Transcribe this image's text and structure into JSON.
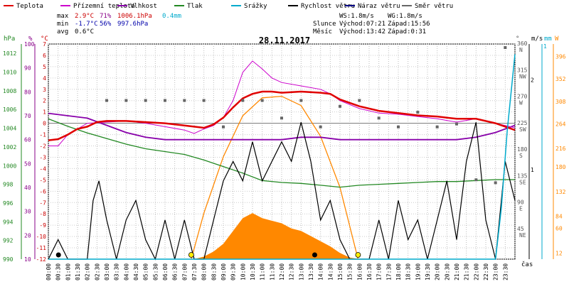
{
  "chart_data": {
    "type": "line",
    "title": "28.11.2017",
    "legend": [
      {
        "label": "Teplota",
        "color": "#e00000"
      },
      {
        "label": "Přízemní teplota",
        "color": "#cc00cc"
      },
      {
        "label": "Vlhkost",
        "color": "#8800aa"
      },
      {
        "label": "Tlak",
        "color": "#228822"
      },
      {
        "label": "Srážky",
        "color": "#00aacc"
      },
      {
        "label": "Rychlost větru",
        "color": "#000000"
      },
      {
        "label": "Náraz větru",
        "color": "#000088"
      },
      {
        "label": "Směr větru",
        "color": "#666666"
      }
    ],
    "stats": {
      "max": {
        "label": "max",
        "temp": "2.9°C",
        "hum": "71%",
        "press": "1006.1hPa",
        "rain": "0.4mm"
      },
      "min": {
        "label": "min",
        "temp": "-1.7°C",
        "hum": "56%",
        "press": "997.6hPa"
      },
      "avg": {
        "label": "avg",
        "temp": "0.6°C"
      }
    },
    "info": {
      "ws": "WS:1.8m/s",
      "wg": "WG:1.8m/s",
      "sun_label": "Slunce",
      "sun_rise": "Východ:07:21",
      "sun_set": "Západ:15:56",
      "moon_label": "Měsíc",
      "moon_rise": "Východ:13:42",
      "moon_set": "Západ:0:31"
    },
    "axes": {
      "hpa_label": "hPa",
      "pct_label": "%",
      "c_label": "°C",
      "deg_label": "°",
      "ms_label": "m/s",
      "mm_label": "mm",
      "w_label": "W",
      "x_label": "čas",
      "hpa_ticks": [
        "990",
        "992",
        "994",
        "996",
        "998",
        "1000",
        "1002",
        "1004",
        "1006",
        "1008",
        "1010",
        "1012"
      ],
      "pct_ticks": [
        "10",
        "20",
        "30",
        "40",
        "50",
        "60",
        "70",
        "80",
        "90",
        "100"
      ],
      "c_range": [
        -12,
        7
      ],
      "ms_ticks": [
        "1",
        "2"
      ],
      "mm_ticks": [
        "1"
      ],
      "w_ticks": [
        "12",
        "60",
        "84",
        "132",
        "180",
        "216",
        "264",
        "308",
        "352",
        "396"
      ],
      "dir_ticks": [
        {
          "deg": "45",
          "dir": "NE"
        },
        {
          "deg": "90",
          "dir": "E"
        },
        {
          "deg": "135",
          "dir": "SE"
        },
        {
          "deg": "180",
          "dir": "S"
        },
        {
          "deg": "225",
          "dir": "SW"
        },
        {
          "deg": "270",
          "dir": "W"
        },
        {
          "deg": "315",
          "dir": "NW"
        },
        {
          "deg": "360",
          "dir": "N"
        }
      ],
      "x_ticks": [
        "00:00",
        "00:30",
        "01:00",
        "01:30",
        "02:00",
        "02:30",
        "03:00",
        "03:30",
        "04:00",
        "04:30",
        "05:00",
        "05:30",
        "06:00",
        "06:30",
        "07:00",
        "07:30",
        "08:00",
        "08:30",
        "09:00",
        "09:30",
        "10:00",
        "10:30",
        "11:00",
        "11:30",
        "12:00",
        "12:30",
        "13:00",
        "13:30",
        "14:00",
        "14:30",
        "15:00",
        "15:30",
        "16:00",
        "16:30",
        "17:00",
        "17:30",
        "18:00",
        "18:30",
        "19:00",
        "19:30",
        "20:00",
        "20:30",
        "21:00",
        "21:30",
        "22:00",
        "22:30",
        "23:00",
        "23:30"
      ]
    },
    "ylim_temp": [
      -12,
      7
    ],
    "ylim_hpa": [
      990,
      1013
    ],
    "ylim_pct": [
      10,
      100
    ],
    "ylim_wind": [
      0,
      11
    ],
    "ylim_w": [
      0,
      420
    ],
    "series": {
      "temperature": [
        [
          0,
          -1.5
        ],
        [
          0.5,
          -1.4
        ],
        [
          1,
          -1
        ],
        [
          1.5,
          -0.5
        ],
        [
          2,
          -0.3
        ],
        [
          2.5,
          0.1
        ],
        [
          3,
          0.2
        ],
        [
          4,
          0.2
        ],
        [
          5,
          0.1
        ],
        [
          6,
          0
        ],
        [
          7,
          -0.2
        ],
        [
          7.5,
          -0.3
        ],
        [
          8,
          -0.4
        ],
        [
          8.5,
          -0.1
        ],
        [
          9,
          0.5
        ],
        [
          9.5,
          1.4
        ],
        [
          10,
          2.2
        ],
        [
          10.5,
          2.6
        ],
        [
          11,
          2.8
        ],
        [
          11.5,
          2.8
        ],
        [
          12,
          2.7
        ],
        [
          13,
          2.8
        ],
        [
          14,
          2.7
        ],
        [
          14.5,
          2.6
        ],
        [
          15,
          2.1
        ],
        [
          16,
          1.5
        ],
        [
          17,
          1.1
        ],
        [
          18,
          0.9
        ],
        [
          19,
          0.7
        ],
        [
          20,
          0.6
        ],
        [
          21,
          0.4
        ],
        [
          22,
          0.4
        ],
        [
          23,
          0
        ],
        [
          24,
          -0.6
        ]
      ],
      "ground_temp": [
        [
          0,
          -2
        ],
        [
          0.5,
          -2
        ],
        [
          1,
          -1
        ],
        [
          1.5,
          -0.5
        ],
        [
          2,
          0
        ],
        [
          3,
          0.1
        ],
        [
          4,
          0.2
        ],
        [
          5,
          0
        ],
        [
          6,
          -0.3
        ],
        [
          7,
          -0.6
        ],
        [
          7.5,
          -0.9
        ],
        [
          8,
          -0.5
        ],
        [
          8.5,
          -0.2
        ],
        [
          9,
          0.5
        ],
        [
          9.5,
          2
        ],
        [
          10,
          4.5
        ],
        [
          10.5,
          5.5
        ],
        [
          11,
          4.8
        ],
        [
          11.5,
          4
        ],
        [
          12,
          3.6
        ],
        [
          13,
          3.3
        ],
        [
          14,
          3
        ],
        [
          14.5,
          2.6
        ],
        [
          15,
          2
        ],
        [
          16,
          1.3
        ],
        [
          17,
          0.9
        ],
        [
          18,
          0.8
        ],
        [
          19,
          0.6
        ],
        [
          20,
          0.4
        ],
        [
          21,
          0.1
        ],
        [
          22,
          0.4
        ],
        [
          23,
          0
        ],
        [
          24,
          -0.4
        ]
      ],
      "humidity": [
        [
          0,
          71
        ],
        [
          1,
          70
        ],
        [
          2,
          69
        ],
        [
          3,
          66
        ],
        [
          4,
          63
        ],
        [
          5,
          61
        ],
        [
          6,
          60
        ],
        [
          7,
          60
        ],
        [
          8,
          60
        ],
        [
          9,
          60
        ],
        [
          10,
          60
        ],
        [
          11,
          60
        ],
        [
          12,
          60
        ],
        [
          13,
          61
        ],
        [
          14,
          61
        ],
        [
          15,
          60
        ],
        [
          16,
          60
        ],
        [
          17,
          60
        ],
        [
          18,
          60
        ],
        [
          19,
          60
        ],
        [
          20,
          60
        ],
        [
          21,
          60
        ],
        [
          22,
          61
        ],
        [
          23,
          63
        ],
        [
          24,
          66
        ]
      ],
      "pressure": [
        [
          0,
          1005
        ],
        [
          1,
          1004.2
        ],
        [
          2,
          1003.5
        ],
        [
          3,
          1002.9
        ],
        [
          4,
          1002.3
        ],
        [
          5,
          1001.8
        ],
        [
          6,
          1001.5
        ],
        [
          7,
          1001.2
        ],
        [
          8,
          1000.6
        ],
        [
          9,
          999.9
        ],
        [
          10,
          999.2
        ],
        [
          11,
          998.4
        ],
        [
          12,
          998.2
        ],
        [
          13,
          998.1
        ],
        [
          14,
          997.9
        ],
        [
          15,
          997.7
        ],
        [
          16,
          997.9
        ],
        [
          17,
          998
        ],
        [
          18,
          998.1
        ],
        [
          19,
          998.2
        ],
        [
          20,
          998.3
        ],
        [
          21,
          998.3
        ],
        [
          22,
          998.4
        ],
        [
          23,
          998.5
        ],
        [
          24,
          998.5
        ]
      ],
      "wind_speed": [
        [
          0,
          0
        ],
        [
          0.5,
          1
        ],
        [
          1,
          0
        ],
        [
          2,
          0
        ],
        [
          2.3,
          3
        ],
        [
          2.6,
          4
        ],
        [
          3,
          2
        ],
        [
          3.5,
          0
        ],
        [
          4,
          2
        ],
        [
          4.5,
          3
        ],
        [
          5,
          1
        ],
        [
          5.5,
          0
        ],
        [
          6,
          2
        ],
        [
          6.5,
          0
        ],
        [
          7,
          2
        ],
        [
          7.5,
          0
        ],
        [
          8,
          0
        ],
        [
          8.5,
          2
        ],
        [
          9,
          4
        ],
        [
          9.5,
          5
        ],
        [
          10,
          4
        ],
        [
          10.5,
          6
        ],
        [
          11,
          4
        ],
        [
          11.5,
          5
        ],
        [
          12,
          6
        ],
        [
          12.5,
          5
        ],
        [
          13,
          7
        ],
        [
          13.5,
          5
        ],
        [
          14,
          2
        ],
        [
          14.5,
          3
        ],
        [
          15,
          1
        ],
        [
          15.5,
          0
        ],
        [
          16,
          0
        ],
        [
          16.5,
          0
        ],
        [
          17,
          2
        ],
        [
          17.5,
          0
        ],
        [
          18,
          3
        ],
        [
          18.5,
          1
        ],
        [
          19,
          2
        ],
        [
          19.5,
          0
        ],
        [
          20,
          2
        ],
        [
          20.5,
          4
        ],
        [
          21,
          1
        ],
        [
          21.5,
          5
        ],
        [
          22,
          7
        ],
        [
          22.5,
          2
        ],
        [
          23,
          0
        ],
        [
          23.5,
          5
        ],
        [
          24,
          3
        ]
      ],
      "rain": [
        [
          0,
          0
        ],
        [
          23,
          0
        ],
        [
          23.3,
          0.1
        ],
        [
          23.6,
          0.25
        ],
        [
          24,
          0.4
        ]
      ],
      "solar": [
        [
          7.5,
          0
        ],
        [
          8,
          5
        ],
        [
          8.5,
          15
        ],
        [
          9,
          30
        ],
        [
          9.5,
          55
        ],
        [
          10,
          80
        ],
        [
          10.5,
          90
        ],
        [
          11,
          80
        ],
        [
          11.5,
          75
        ],
        [
          12,
          70
        ],
        [
          12.5,
          60
        ],
        [
          13,
          55
        ],
        [
          13.5,
          45
        ],
        [
          14,
          35
        ],
        [
          14.5,
          25
        ],
        [
          15,
          12
        ],
        [
          15.5,
          3
        ],
        [
          16,
          0
        ]
      ],
      "sun_arc": [
        [
          7.35,
          0
        ],
        [
          8,
          90
        ],
        [
          9,
          200
        ],
        [
          10,
          280
        ],
        [
          11,
          315
        ],
        [
          12,
          318
        ],
        [
          13,
          300
        ],
        [
          14,
          240
        ],
        [
          15,
          140
        ],
        [
          15.93,
          0
        ]
      ],
      "dir_gray": [
        [
          3,
          270
        ],
        [
          4,
          270
        ],
        [
          5,
          270
        ],
        [
          6,
          270
        ],
        [
          7,
          270
        ],
        [
          8,
          270
        ],
        [
          9,
          225
        ],
        [
          10,
          270
        ],
        [
          11,
          270
        ],
        [
          12,
          240
        ],
        [
          13,
          270
        ],
        [
          14,
          225
        ],
        [
          15,
          260
        ],
        [
          16,
          270
        ],
        [
          17,
          240
        ],
        [
          18,
          225
        ],
        [
          19,
          250
        ],
        [
          20,
          225
        ],
        [
          21,
          230
        ],
        [
          22,
          135
        ],
        [
          23,
          130
        ],
        [
          23.5,
          360
        ]
      ]
    }
  }
}
